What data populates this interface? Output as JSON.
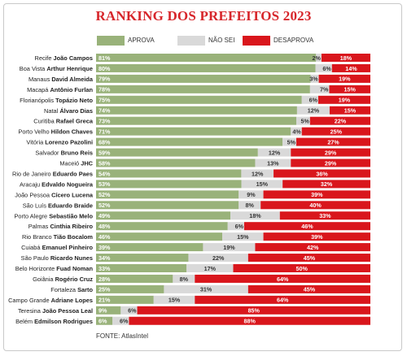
{
  "chart_data": {
    "type": "bar",
    "stacked": true,
    "orientation": "horizontal",
    "title": "RANKING DOS PREFEITOS 2023",
    "legend_position": "top",
    "xlim": [
      0,
      100
    ],
    "series": [
      {
        "name": "APROVA",
        "color": "#99b27a",
        "values": [
          81,
          80,
          79,
          78,
          75,
          74,
          73,
          71,
          68,
          59,
          58,
          54,
          53,
          52,
          52,
          49,
          48,
          46,
          39,
          34,
          33,
          28,
          25,
          21,
          9,
          6
        ]
      },
      {
        "name": "NÃO SEI",
        "color": "#d9d9d9",
        "values": [
          2,
          6,
          3,
          7,
          6,
          12,
          5,
          4,
          5,
          12,
          13,
          12,
          15,
          9,
          8,
          18,
          6,
          15,
          19,
          22,
          17,
          8,
          31,
          15,
          6,
          6
        ]
      },
      {
        "name": "DESAPROVA",
        "color": "#d9161c",
        "values": [
          18,
          14,
          19,
          15,
          19,
          15,
          22,
          25,
          27,
          29,
          29,
          36,
          32,
          39,
          40,
          33,
          46,
          39,
          42,
          45,
          50,
          64,
          45,
          64,
          85,
          88
        ]
      }
    ],
    "rows": [
      {
        "city": "Recife",
        "mayor": "João Campos"
      },
      {
        "city": "Boa Vista",
        "mayor": "Arthur Henrique"
      },
      {
        "city": "Manaus",
        "mayor": "David Almeida"
      },
      {
        "city": "Macapá",
        "mayor": "Antônio Furlan"
      },
      {
        "city": "Florianópolis",
        "mayor": "Topázio Neto"
      },
      {
        "city": "Natal",
        "mayor": "Álvaro Dias"
      },
      {
        "city": "Curitiba",
        "mayor": "Rafael Greca"
      },
      {
        "city": "Porto Velho",
        "mayor": "Hildon Chaves"
      },
      {
        "city": "Vitória",
        "mayor": "Lorenzo Pazolini"
      },
      {
        "city": "Salvador",
        "mayor": "Bruno Reis"
      },
      {
        "city": "Maceió",
        "mayor": "JHC"
      },
      {
        "city": "Rio de Janeiro",
        "mayor": "Eduardo Paes"
      },
      {
        "city": "Aracaju",
        "mayor": "Edvaldo Nogueira"
      },
      {
        "city": "João Pessoa",
        "mayor": "Cícero Lucena"
      },
      {
        "city": "São Luís",
        "mayor": "Eduardo Braide"
      },
      {
        "city": "Porto Alegre",
        "mayor": "Sebastião Melo"
      },
      {
        "city": "Palmas",
        "mayor": "Cinthia Ribeiro"
      },
      {
        "city": "Rio Branco",
        "mayor": "Tião Bocalom"
      },
      {
        "city": "Cuiabá",
        "mayor": "Emanuel Pinheiro"
      },
      {
        "city": "São Paulo",
        "mayor": "Ricardo Nunes"
      },
      {
        "city": "Belo Horizonte",
        "mayor": "Fuad Noman"
      },
      {
        "city": "Goiânia",
        "mayor": "Rogério Cruz"
      },
      {
        "city": "Fortaleza",
        "mayor": "Sarto"
      },
      {
        "city": "Campo Grande",
        "mayor": "Adriane Lopes"
      },
      {
        "city": "Teresina",
        "mayor": "João Pessoa Leal"
      },
      {
        "city": "Belém",
        "mayor": "Edmilson Rodrigues"
      }
    ],
    "source": "FONTE: AtlasIntel"
  }
}
